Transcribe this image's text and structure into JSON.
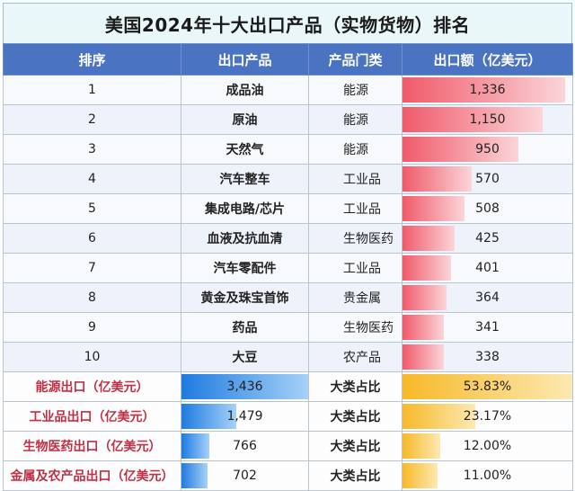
{
  "title": "美国2024年十大出口产品（实物货物）排名",
  "headers": [
    "排序",
    "出口产品",
    "产品门类",
    "出口额（亿美元）"
  ],
  "rows": [
    {
      "rank": "1",
      "product": "成品油",
      "category": "能源",
      "value": "1,336",
      "amount": 1336
    },
    {
      "rank": "2",
      "product": "原油",
      "category": "能源",
      "value": "1,150",
      "amount": 1150
    },
    {
      "rank": "3",
      "product": "天然气",
      "category": "能源",
      "value": "950",
      "amount": 950
    },
    {
      "rank": "4",
      "product": "汽车整车",
      "category": "工业品",
      "value": "570",
      "amount": 570
    },
    {
      "rank": "5",
      "product": "集成电路/芯片",
      "category": "工业品",
      "value": "508",
      "amount": 508
    },
    {
      "rank": "6",
      "product": "血液及抗血清",
      "category": "生物医药",
      "value": "425",
      "amount": 425
    },
    {
      "rank": "7",
      "product": "汽车零配件",
      "category": "工业品",
      "value": "401",
      "amount": 401
    },
    {
      "rank": "8",
      "product": "黄金及珠宝首饰",
      "category": "贵金属",
      "value": "364",
      "amount": 364
    },
    {
      "rank": "9",
      "product": "药品",
      "category": "生物医药",
      "value": "341",
      "amount": 341
    },
    {
      "rank": "10",
      "product": "大豆",
      "category": "农产品",
      "value": "338",
      "amount": 338
    }
  ],
  "summary": [
    {
      "label": "能源出口（亿美元）",
      "value": "3,436",
      "amount": 3436,
      "ratio_label": "大类占比",
      "ratio": "53.83%",
      "percent": 53.83
    },
    {
      "label": "工业品出口（亿美元）",
      "value": "1,479",
      "amount": 1479,
      "ratio_label": "大类占比",
      "ratio": "23.17%",
      "percent": 23.17
    },
    {
      "label": "生物医药出口（亿美元）",
      "value": "766",
      "amount": 766,
      "ratio_label": "大类占比",
      "ratio": "12.00%",
      "percent": 12.0
    },
    {
      "label": "金属及农产品出口（亿美元）",
      "value": "702",
      "amount": 702,
      "ratio_label": "大类占比",
      "ratio": "11.00%",
      "percent": 11.0
    }
  ],
  "colors": {
    "header_bg": "#4a73c2",
    "red_bar": "#f05a6a",
    "blue_bar": "#1f7be0",
    "yellow_bar": "#f7b928",
    "summary_label": "#c03045"
  }
}
